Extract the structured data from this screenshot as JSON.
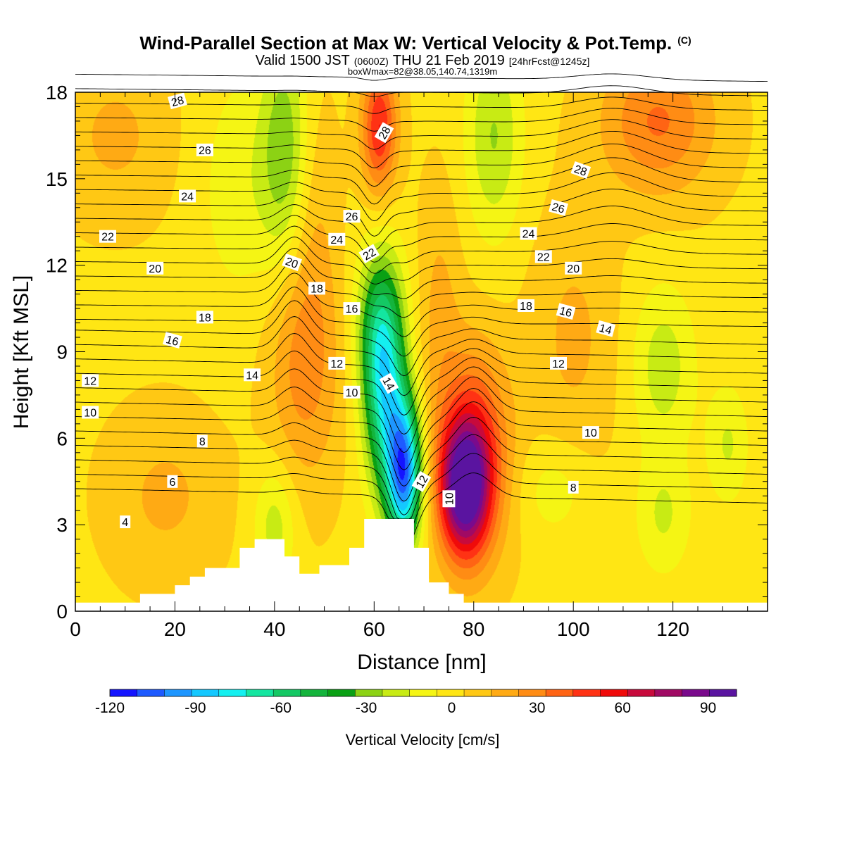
{
  "title": {
    "main": "Wind-Parallel Section at Max W: Vertical Velocity & Pot.Temp.",
    "copyright": "(C)",
    "valid_a": "Valid 1500 JST",
    "valid_b": "(0600Z)",
    "valid_c": "THU 21 Feb 2019",
    "valid_d": "[24hrFcst@1245z]",
    "box": "boxWmax=82@38.05,140.74,1319m"
  },
  "colors": {
    "contour": "#000000",
    "terrain": "#ffffff"
  },
  "chart_data": {
    "type": "heatmap",
    "title": "Wind-Parallel Section at Max W: Vertical Velocity & Pot.Temp.",
    "xlabel": "Distance [nm]",
    "ylabel": "Height [Kft MSL]",
    "xlim": [
      0,
      139
    ],
    "ylim": [
      0,
      18
    ],
    "x_ticks": [
      0,
      20,
      40,
      60,
      80,
      100,
      120
    ],
    "y_ticks": [
      0,
      3,
      6,
      9,
      12,
      15,
      18
    ],
    "x_tick_labels": [
      "0",
      "20",
      "40",
      "60",
      "80",
      "100",
      "120"
    ],
    "y_tick_labels": [
      "0",
      "3",
      "6",
      "9",
      "12",
      "15",
      "18"
    ],
    "colorbar": {
      "label": "Vertical Velocity [cm/s]",
      "levels": [
        -120,
        -110,
        -100,
        -90,
        -80,
        -70,
        -60,
        -50,
        -40,
        -30,
        -20,
        -10,
        0,
        10,
        20,
        30,
        40,
        50,
        60,
        70,
        80,
        90,
        100
      ],
      "tick_values": [
        -120,
        -90,
        -60,
        -30,
        0,
        30,
        60,
        90
      ],
      "tick_labels": [
        "-120",
        "-90",
        "-60",
        "-30",
        "0",
        "30",
        "60",
        "90"
      ],
      "colors": [
        "#1414ff",
        "#1e5aff",
        "#1e96ff",
        "#14c8ff",
        "#14f0f0",
        "#14e6a0",
        "#14c864",
        "#14b43c",
        "#0aa014",
        "#8cd214",
        "#c8eb14",
        "#f5f514",
        "#ffe614",
        "#ffc814",
        "#ffaa14",
        "#ff8c14",
        "#ff6414",
        "#ff3214",
        "#f00a0a",
        "#c80a3c",
        "#a00a64",
        "#7a0a8c",
        "#5a14a0"
      ]
    },
    "terrain": [
      [
        0,
        0.3
      ],
      [
        13,
        0.3
      ],
      [
        13,
        0.6
      ],
      [
        20,
        0.6
      ],
      [
        20,
        0.9
      ],
      [
        23,
        0.9
      ],
      [
        23,
        1.2
      ],
      [
        26,
        1.2
      ],
      [
        26,
        1.5
      ],
      [
        33,
        1.5
      ],
      [
        33,
        2.2
      ],
      [
        36,
        2.2
      ],
      [
        36,
        2.5
      ],
      [
        42,
        2.5
      ],
      [
        42,
        1.9
      ],
      [
        45,
        1.9
      ],
      [
        45,
        1.3
      ],
      [
        49,
        1.3
      ],
      [
        49,
        1.6
      ],
      [
        55,
        1.6
      ],
      [
        55,
        2.2
      ],
      [
        58,
        2.2
      ],
      [
        58,
        3.2
      ],
      [
        68,
        3.2
      ],
      [
        68,
        2.2
      ],
      [
        71,
        2.2
      ],
      [
        71,
        1.0
      ],
      [
        75,
        1.0
      ],
      [
        75,
        0.6
      ],
      [
        78,
        0.6
      ],
      [
        78,
        0.3
      ],
      [
        139,
        0.3
      ]
    ],
    "velocity_features": [
      {
        "x": 66,
        "y": 4.8,
        "value": -110,
        "sx": 2.5,
        "sy": 1.8
      },
      {
        "x": 62,
        "y": 7.5,
        "value": -70,
        "sx": 3.0,
        "sy": 2.5
      },
      {
        "x": 61,
        "y": 10.0,
        "value": -40,
        "sx": 3.5,
        "sy": 2.0
      },
      {
        "x": 78,
        "y": 4.2,
        "value": 90,
        "sx": 3.5,
        "sy": 1.6
      },
      {
        "x": 80,
        "y": 5.6,
        "value": 50,
        "sx": 5.0,
        "sy": 2.5
      },
      {
        "x": 61,
        "y": 16.8,
        "value": 55,
        "sx": 2.5,
        "sy": 1.6
      },
      {
        "x": 46,
        "y": 8.8,
        "value": 30,
        "sx": 5.0,
        "sy": 3.0
      },
      {
        "x": 117,
        "y": 17.0,
        "value": 35,
        "sx": 8.0,
        "sy": 1.8
      },
      {
        "x": 42,
        "y": 16.0,
        "value": -35,
        "sx": 3.5,
        "sy": 3.0
      },
      {
        "x": 84,
        "y": 16.5,
        "value": -30,
        "sx": 4.0,
        "sy": 2.5
      },
      {
        "x": 118,
        "y": 8.5,
        "value": -25,
        "sx": 4.5,
        "sy": 2.0
      },
      {
        "x": 131,
        "y": 5.8,
        "value": -20,
        "sx": 3.0,
        "sy": 1.5
      },
      {
        "x": 118,
        "y": 3.3,
        "value": -20,
        "sx": 4.0,
        "sy": 1.5
      },
      {
        "x": 96,
        "y": 4.2,
        "value": -15,
        "sx": 5.0,
        "sy": 1.2
      },
      {
        "x": 33,
        "y": 14.8,
        "value": -15,
        "sx": 6.0,
        "sy": 3.0
      },
      {
        "x": 40,
        "y": 3.0,
        "value": -25,
        "sx": 3.0,
        "sy": 1.5
      },
      {
        "x": 100,
        "y": 9.5,
        "value": 15,
        "sx": 6.0,
        "sy": 3.0
      },
      {
        "x": 18,
        "y": 4.0,
        "value": 15,
        "sx": 8.0,
        "sy": 2.0
      },
      {
        "x": 73,
        "y": 10.5,
        "value": 15,
        "sx": 3.0,
        "sy": 3.0
      },
      {
        "x": 8,
        "y": 16.5,
        "value": 15,
        "sx": 8.0,
        "sy": 2.0
      },
      {
        "x": 48,
        "y": 14.5,
        "value": 10,
        "sx": 3.0,
        "sy": 3.0
      }
    ],
    "background_velocity": 8,
    "isentropes": {
      "base_values": [
        4,
        4.5,
        5,
        5.5,
        6,
        6.5,
        7,
        7.5,
        8,
        8.5,
        9,
        9.5,
        10,
        10.5,
        11,
        11.5,
        12,
        12.5,
        13,
        13.5,
        14,
        14.5,
        15,
        15.5,
        16,
        16.5,
        17,
        17.5,
        18,
        18.5
      ]
    },
    "contour_labels": [
      {
        "text": "28",
        "x": 20.5,
        "y": 17.7,
        "angle": -15
      },
      {
        "text": "28",
        "x": 62,
        "y": 16.6,
        "angle": -60
      },
      {
        "text": "28",
        "x": 101.5,
        "y": 15.3,
        "angle": 20
      },
      {
        "text": "26",
        "x": 26,
        "y": 16.0,
        "angle": 0
      },
      {
        "text": "26",
        "x": 55.5,
        "y": 13.7,
        "angle": 0
      },
      {
        "text": "26",
        "x": 97,
        "y": 14.0,
        "angle": 15
      },
      {
        "text": "24",
        "x": 22.5,
        "y": 14.4,
        "angle": 0
      },
      {
        "text": "24",
        "x": 52.5,
        "y": 12.9,
        "angle": 0
      },
      {
        "text": "24",
        "x": 91,
        "y": 13.1,
        "angle": 0
      },
      {
        "text": "22",
        "x": 6.5,
        "y": 13.0,
        "angle": 0
      },
      {
        "text": "22",
        "x": 59,
        "y": 12.4,
        "angle": -30
      },
      {
        "text": "22",
        "x": 94,
        "y": 12.3,
        "angle": 0
      },
      {
        "text": "20",
        "x": 16,
        "y": 11.9,
        "angle": 0
      },
      {
        "text": "20",
        "x": 43.5,
        "y": 12.1,
        "angle": 20
      },
      {
        "text": "20",
        "x": 100,
        "y": 11.9,
        "angle": 0
      },
      {
        "text": "18",
        "x": 48.5,
        "y": 11.2,
        "angle": 0
      },
      {
        "text": "18",
        "x": 26,
        "y": 10.2,
        "angle": 0
      },
      {
        "text": "18",
        "x": 90.5,
        "y": 10.6,
        "angle": 0
      },
      {
        "text": "16",
        "x": 55.5,
        "y": 10.5,
        "angle": 0
      },
      {
        "text": "16",
        "x": 19.5,
        "y": 9.4,
        "angle": 15
      },
      {
        "text": "16",
        "x": 98.5,
        "y": 10.4,
        "angle": 15
      },
      {
        "text": "14",
        "x": 106.5,
        "y": 9.8,
        "angle": 15
      },
      {
        "text": "14",
        "x": 35.5,
        "y": 8.2,
        "angle": 0
      },
      {
        "text": "14",
        "x": 63,
        "y": 7.9,
        "angle": 60
      },
      {
        "text": "12",
        "x": 52.5,
        "y": 8.6,
        "angle": 0
      },
      {
        "text": "12",
        "x": 3,
        "y": 8.0,
        "angle": 0
      },
      {
        "text": "12",
        "x": 97,
        "y": 8.6,
        "angle": 0
      },
      {
        "text": "12",
        "x": 69.5,
        "y": 4.5,
        "angle": -60
      },
      {
        "text": "10",
        "x": 55.5,
        "y": 7.6,
        "angle": 0
      },
      {
        "text": "10",
        "x": 3,
        "y": 6.9,
        "angle": 0
      },
      {
        "text": "10",
        "x": 103.5,
        "y": 6.2,
        "angle": 0
      },
      {
        "text": "10",
        "x": 75,
        "y": 3.9,
        "angle": -90
      },
      {
        "text": "8",
        "x": 25.5,
        "y": 5.9,
        "angle": 0
      },
      {
        "text": "8",
        "x": 100,
        "y": 4.3,
        "angle": 0
      },
      {
        "text": "6",
        "x": 19.5,
        "y": 4.5,
        "angle": 0
      },
      {
        "text": "4",
        "x": 10,
        "y": 3.1,
        "angle": 0
      }
    ]
  }
}
